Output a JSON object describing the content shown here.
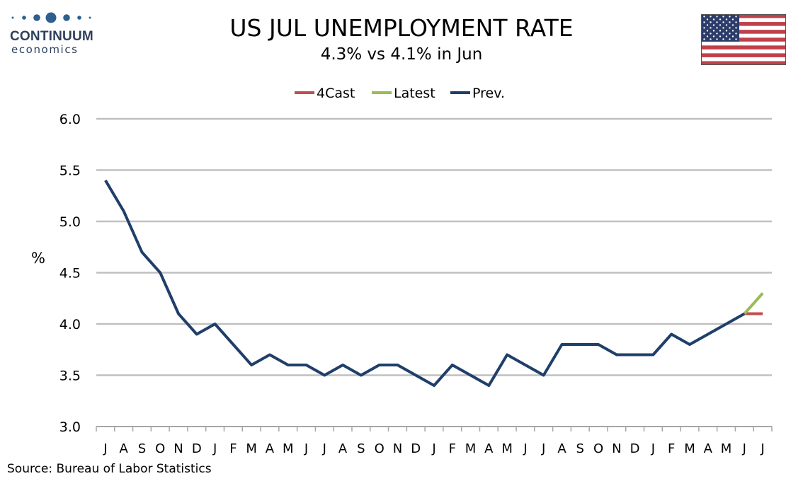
{
  "logo": {
    "name": "CONTINUUM",
    "sub": "economics",
    "color": "#2f5f8f"
  },
  "source": "Source: Bureau of Labor Statistics",
  "chart_data": {
    "type": "line",
    "title": "US JUL UNEMPLOYMENT RATE",
    "subtitle": "4.3% vs 4.1% in Jun",
    "ylabel": "%",
    "xlabel": "",
    "ylim": [
      3.0,
      6.0
    ],
    "yticks": [
      "3.0",
      "3.5",
      "4.0",
      "4.5",
      "5.0",
      "5.5",
      "6.0"
    ],
    "grid": true,
    "legend_position": "top",
    "categories": [
      "J",
      "A",
      "S",
      "O",
      "N",
      "D",
      "J",
      "F",
      "M",
      "A",
      "M",
      "J",
      "J",
      "A",
      "S",
      "O",
      "N",
      "D",
      "J",
      "F",
      "M",
      "A",
      "M",
      "J",
      "J",
      "A",
      "S",
      "O",
      "N",
      "D",
      "J",
      "F",
      "M",
      "A",
      "M",
      "J",
      "J"
    ],
    "series": [
      {
        "name": "4Cast",
        "color": "#c0504d",
        "values": [
          null,
          null,
          null,
          null,
          null,
          null,
          null,
          null,
          null,
          null,
          null,
          null,
          null,
          null,
          null,
          null,
          null,
          null,
          null,
          null,
          null,
          null,
          null,
          null,
          null,
          null,
          null,
          null,
          null,
          null,
          null,
          null,
          null,
          null,
          null,
          4.1,
          4.1
        ]
      },
      {
        "name": "Latest",
        "color": "#9bbb59",
        "values": [
          null,
          null,
          null,
          null,
          null,
          null,
          null,
          null,
          null,
          null,
          null,
          null,
          null,
          null,
          null,
          null,
          null,
          null,
          null,
          null,
          null,
          null,
          null,
          null,
          null,
          null,
          null,
          null,
          null,
          null,
          null,
          null,
          null,
          null,
          null,
          4.1,
          4.3
        ]
      },
      {
        "name": "Prev.",
        "color": "#1f3f6a",
        "values": [
          5.4,
          5.1,
          4.7,
          4.5,
          4.1,
          3.9,
          4.0,
          3.8,
          3.6,
          3.7,
          3.6,
          3.6,
          3.5,
          3.6,
          3.5,
          3.6,
          3.6,
          3.5,
          3.4,
          3.6,
          3.5,
          3.4,
          3.7,
          3.6,
          3.5,
          3.8,
          3.8,
          3.8,
          3.7,
          3.7,
          3.7,
          3.9,
          3.8,
          3.9,
          4.0,
          4.1,
          null
        ]
      }
    ]
  }
}
